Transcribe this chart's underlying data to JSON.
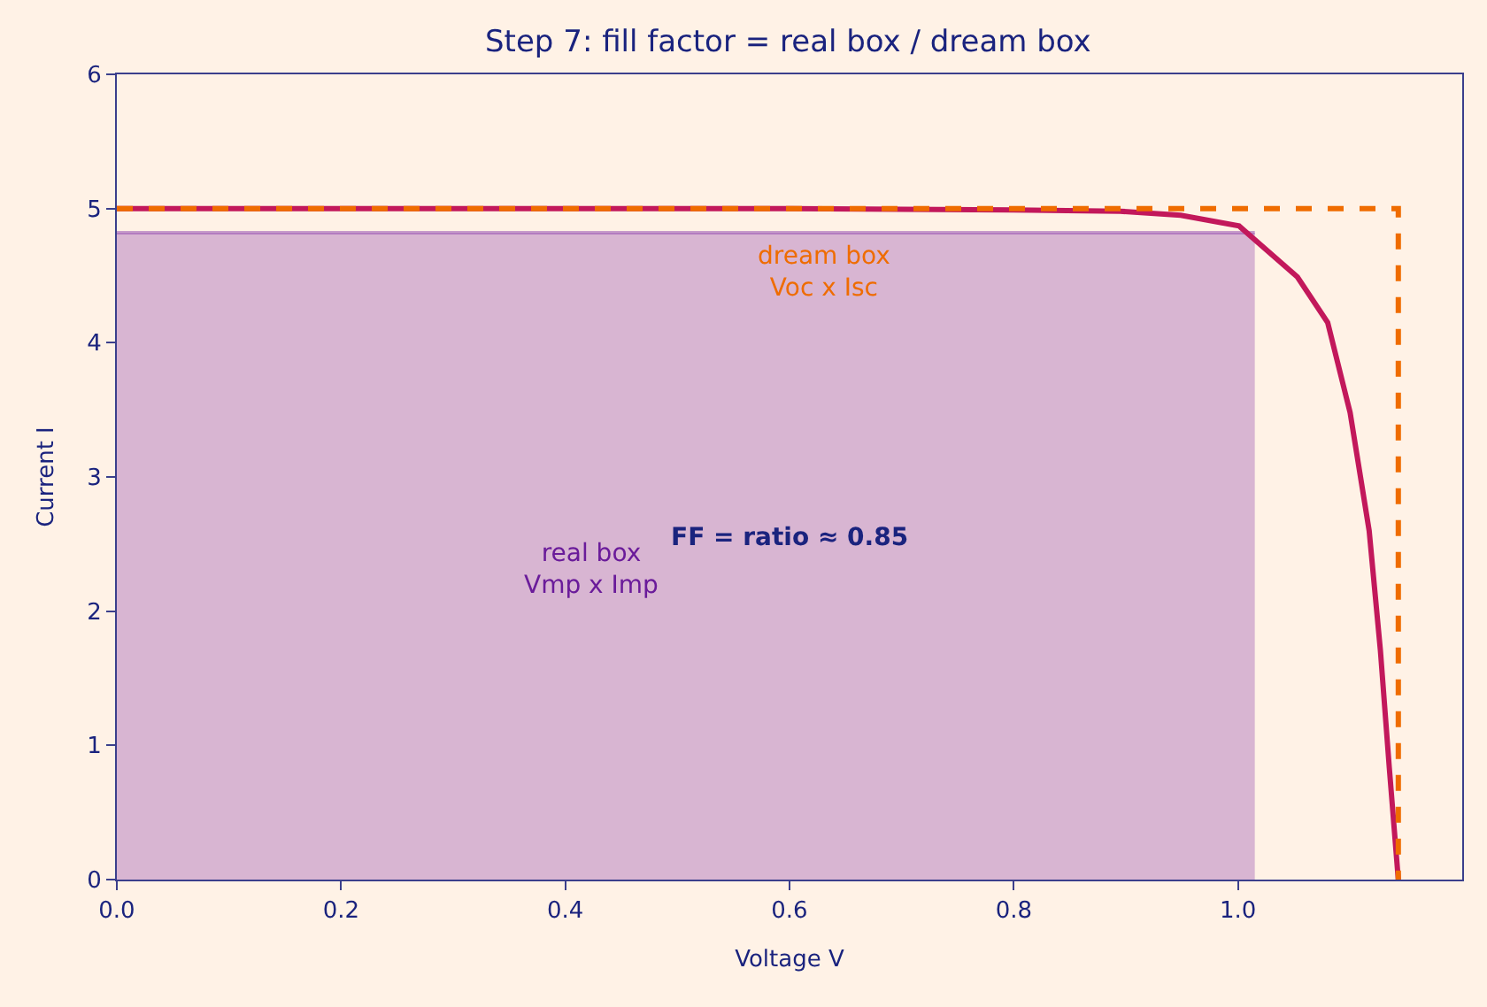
{
  "chart_data": {
    "type": "line",
    "title": "Step 7: fill factor = real box / dream box",
    "xlabel": "Voltage V",
    "ylabel": "Current I",
    "xlim": [
      0,
      1.2
    ],
    "xticks": [
      {
        "value": 0,
        "label": "0.0"
      },
      0.2,
      0.4,
      0.6,
      0.8,
      {
        "value": 1,
        "label": "1.0"
      }
    ],
    "ylim": [
      0,
      6
    ],
    "yticks": [
      0,
      1,
      2,
      3,
      4,
      5,
      6
    ],
    "series": [
      {
        "type": "line",
        "color": "#c2185b",
        "x": [
          0,
          0.2,
          0.4,
          0.6,
          0.8,
          0.895,
          0.949,
          1.001,
          1.053,
          1.08,
          1.1,
          1.117,
          1.127,
          1.135,
          1.143
        ],
        "values": [
          5,
          5,
          5,
          5,
          4.99,
          4.98,
          4.95,
          4.87,
          4.49,
          4.15,
          3.48,
          2.6,
          1.71,
          0.83,
          0
        ]
      },
      {
        "type": "line",
        "color": "#ef6c00",
        "line_style": "dashed",
        "x": [
          0,
          1.143,
          1.143
        ],
        "values": [
          5,
          5,
          0
        ]
      },
      {
        "type": "area",
        "color": "#8e44ad",
        "x": [
          0,
          1.015
        ],
        "values": [
          4.82,
          4.82
        ]
      }
    ],
    "annotations": [
      "dream box\nVoc x Isc",
      "real box\nVmp x Imp",
      "FF = ratio ≈ 0.85"
    ],
    "grid": false,
    "marker": "none"
  }
}
